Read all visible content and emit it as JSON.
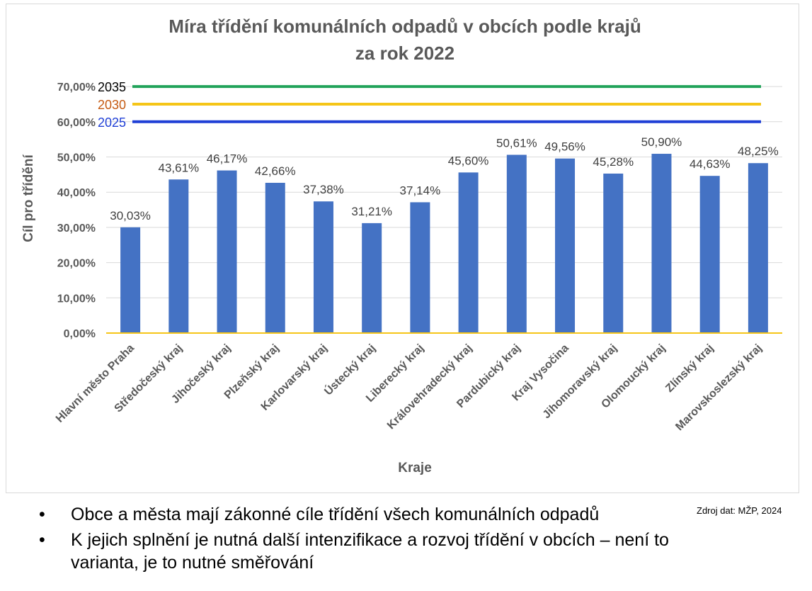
{
  "chart_data": {
    "type": "bar",
    "title_line1": "Míra třídění komunálních odpadů v obcích podle krajů",
    "title_line2": "za rok 2022",
    "xlabel": "Kraje",
    "ylabel": "Cíl pro třídění",
    "ylim": [
      0,
      70
    ],
    "yticks": [
      0,
      10,
      20,
      30,
      40,
      50,
      60,
      70
    ],
    "ytick_labels": [
      "0,00%",
      "10,00%",
      "20,00%",
      "30,00%",
      "40,00%",
      "50,00%",
      "60,00%",
      "70,00%"
    ],
    "grid": true,
    "categories": [
      "Hlavní město Praha",
      "Středočeský kraj",
      "Jihočeský kraj",
      "Plzeňský kraj",
      "Karlovarský kraj",
      "Ústecký kraj",
      "Liberecký kraj",
      "Královehradecký kraj",
      "Pardubický kraj",
      "Kraj Vysočina",
      "Jihomoravský kraj",
      "Olomoucký kraj",
      "Zlínský kraj",
      "Marovskoslezský kraj"
    ],
    "values": [
      30.03,
      43.61,
      46.17,
      42.66,
      37.38,
      31.21,
      37.14,
      45.6,
      50.61,
      49.56,
      45.28,
      50.9,
      44.63,
      48.25
    ],
    "value_labels": [
      "30,03%",
      "43,61%",
      "46,17%",
      "42,66%",
      "37,38%",
      "31,21%",
      "37,14%",
      "45,60%",
      "50,61%",
      "49,56%",
      "45,28%",
      "50,90%",
      "44,63%",
      "48,25%"
    ],
    "bar_color": "#4472c4",
    "target_lines": [
      {
        "label": "2035",
        "value": 70,
        "color": "#21a35a",
        "label_color": "#000000"
      },
      {
        "label": "2030",
        "value": 65,
        "color": "#f5c518",
        "label_color": "#c55a11"
      },
      {
        "label": "2025",
        "value": 60,
        "color": "#1f3fd6",
        "label_color": "#1f3fd6"
      }
    ]
  },
  "bullets": [
    "Obce a města mají zákonné cíle třídění všech komunálních odpadů",
    "K jejich splnění je nutná další intenzifikace a rozvoj třídění v obcích – není to varianta, je to nutné směřování"
  ],
  "bullet_glyph": "•",
  "source": "Zdroj dat: MŽP, 2024"
}
